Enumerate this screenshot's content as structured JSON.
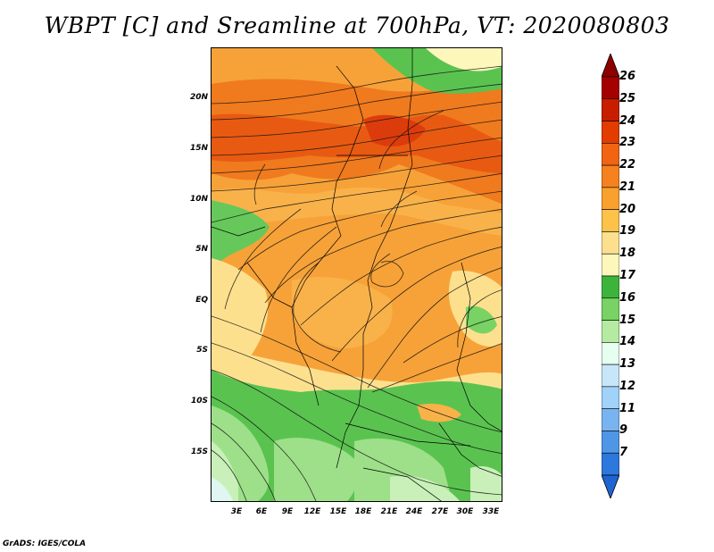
{
  "title": "WBPT [C] and Sreamline at 700hPa, VT: 2020080803",
  "footer": "GrADS: IGES/COLA",
  "y_axis": [
    "20N",
    "15N",
    "10N",
    "5N",
    "EQ",
    "5S",
    "10S",
    "15S"
  ],
  "x_axis": [
    "3E",
    "6E",
    "9E",
    "12E",
    "15E",
    "18E",
    "21E",
    "24E",
    "27E",
    "30E",
    "33E"
  ],
  "colorbar": {
    "labels": [
      "26",
      "25",
      "24",
      "23",
      "22",
      "21",
      "20",
      "19",
      "18",
      "17",
      "16",
      "15",
      "14",
      "13",
      "12",
      "11",
      "9",
      "7"
    ],
    "colors": [
      "#a50000",
      "#c81e00",
      "#e23c00",
      "#f06414",
      "#f5821e",
      "#f9a02e",
      "#fcc24a",
      "#fde08e",
      "#fef7bc",
      "#3cb43c",
      "#78d264",
      "#b4eba0",
      "#e6fff0",
      "#c8e6fa",
      "#a0d2fa",
      "#78b4f0",
      "#5096e6",
      "#2d78dc"
    ],
    "top_color": "#8c0000",
    "bottom_color": "#1e64d2"
  }
}
